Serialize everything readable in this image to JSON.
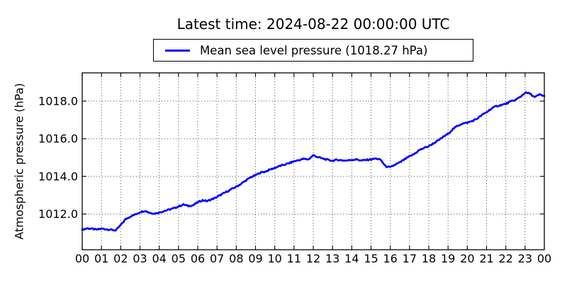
{
  "title": "Latest time: 2024-08-22 00:00:00 UTC",
  "legend": {
    "label": "Mean sea level pressure (1018.27 hPa)",
    "line_color": "#0000ff"
  },
  "axes": {
    "ylabel": "Atmospheric pressure (hPa)",
    "x_tick_labels": [
      "00",
      "01",
      "02",
      "03",
      "04",
      "05",
      "06",
      "07",
      "08",
      "09",
      "10",
      "11",
      "12",
      "13",
      "14",
      "15",
      "16",
      "17",
      "18",
      "19",
      "20",
      "21",
      "22",
      "23",
      "00"
    ],
    "y_tick_labels": [
      "1012.0",
      "1014.0",
      "1016.0",
      "1018.0"
    ],
    "y_tick_values": [
      1012,
      1014,
      1016,
      1018
    ]
  },
  "colors": {
    "line": "#0000ff",
    "grid": "#444444",
    "axis": "#000000",
    "background": "#ffffff"
  },
  "chart_data": {
    "type": "line",
    "title": "Latest time: 2024-08-22 00:00:00 UTC",
    "xlabel": "",
    "ylabel": "Atmospheric pressure (hPa)",
    "xlim": [
      0,
      24
    ],
    "ylim": [
      1010.1,
      1019.5
    ],
    "x_tick_hours": [
      0,
      1,
      2,
      3,
      4,
      5,
      6,
      7,
      8,
      9,
      10,
      11,
      12,
      13,
      14,
      15,
      16,
      17,
      18,
      19,
      20,
      21,
      22,
      23,
      24
    ],
    "grid": "dotted",
    "legend_position": "upper center",
    "latest_time": "2024-08-22 00:00:00 UTC",
    "latest_value_hpa": 1018.27,
    "series": [
      {
        "name": "Mean sea level pressure (1018.27 hPa)",
        "x_hours": [
          0,
          0.25,
          0.5,
          0.75,
          1,
          1.25,
          1.5,
          1.75,
          2,
          2.25,
          2.5,
          2.75,
          3,
          3.25,
          3.5,
          3.75,
          4,
          4.25,
          4.5,
          4.75,
          5,
          5.25,
          5.5,
          5.75,
          6,
          6.25,
          6.5,
          6.75,
          7,
          7.25,
          7.5,
          7.75,
          8,
          8.25,
          8.5,
          8.75,
          9,
          9.25,
          9.5,
          9.75,
          10,
          10.25,
          10.5,
          10.75,
          11,
          11.25,
          11.5,
          11.75,
          12,
          12.25,
          12.5,
          12.75,
          13,
          13.25,
          13.5,
          13.75,
          14,
          14.25,
          14.5,
          14.75,
          15,
          15.25,
          15.5,
          15.75,
          16,
          16.25,
          16.5,
          16.75,
          17,
          17.25,
          17.5,
          17.75,
          18,
          18.25,
          18.5,
          18.75,
          19,
          19.25,
          19.5,
          19.75,
          20,
          20.25,
          20.5,
          20.75,
          21,
          21.25,
          21.5,
          21.75,
          22,
          22.25,
          22.5,
          22.75,
          23,
          23.25,
          23.5,
          23.75,
          24
        ],
        "values": [
          1011.16,
          1011.24,
          1011.21,
          1011.17,
          1011.22,
          1011.19,
          1011.16,
          1011.13,
          1011.41,
          1011.72,
          1011.87,
          1011.97,
          1012.1,
          1012.17,
          1012.07,
          1012.02,
          1012.08,
          1012.16,
          1012.23,
          1012.3,
          1012.4,
          1012.5,
          1012.43,
          1012.46,
          1012.62,
          1012.73,
          1012.69,
          1012.79,
          1012.9,
          1013.05,
          1013.18,
          1013.32,
          1013.45,
          1013.6,
          1013.78,
          1013.95,
          1014.06,
          1014.2,
          1014.25,
          1014.36,
          1014.45,
          1014.55,
          1014.62,
          1014.7,
          1014.8,
          1014.86,
          1014.93,
          1014.9,
          1015.12,
          1015.02,
          1014.94,
          1014.88,
          1014.83,
          1014.88,
          1014.85,
          1014.84,
          1014.88,
          1014.9,
          1014.84,
          1014.87,
          1014.9,
          1014.95,
          1014.88,
          1014.54,
          1014.48,
          1014.62,
          1014.74,
          1014.91,
          1015.06,
          1015.19,
          1015.39,
          1015.51,
          1015.6,
          1015.76,
          1015.91,
          1016.1,
          1016.26,
          1016.51,
          1016.69,
          1016.81,
          1016.85,
          1016.94,
          1017.06,
          1017.25,
          1017.41,
          1017.6,
          1017.73,
          1017.79,
          1017.85,
          1017.98,
          1018.06,
          1018.22,
          1018.45,
          1018.4,
          1018.2,
          1018.35,
          1018.27
        ]
      }
    ]
  }
}
